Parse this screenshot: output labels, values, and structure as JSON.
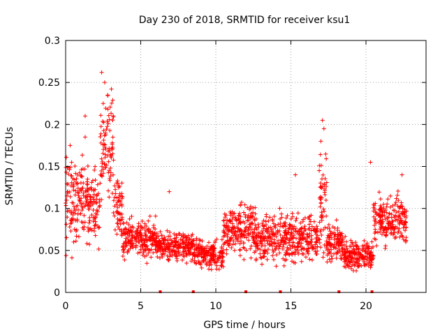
{
  "chart_data": {
    "type": "scatter",
    "title": "Day 230 of 2018, SRMTID for receiver ksu1",
    "xlabel": "GPS time / hours",
    "ylabel": "SRMTID / TECUs",
    "xlim": [
      0,
      24
    ],
    "ylim": [
      0,
      0.3
    ],
    "grid": true,
    "x_ticks": [
      0,
      5,
      10,
      15,
      20
    ],
    "x_tick_labels": [
      "0",
      "5",
      "10",
      "15",
      "20"
    ],
    "y_ticks": [
      0,
      0.05,
      0.1,
      0.15,
      0.2,
      0.25,
      0.3
    ],
    "y_tick_labels": [
      "0",
      "0.05",
      "0.1",
      "0.15",
      "0.2",
      "0.25",
      "0.3"
    ],
    "marker": "plus",
    "series_color": "#ff0000",
    "baseline_markers_x": [
      6.3,
      8.5,
      12.0,
      14.3,
      18.2,
      20.4
    ],
    "activity_profile": [
      {
        "start": 0.0,
        "end": 0.5,
        "center": 0.11,
        "spread": 0.05
      },
      {
        "start": 0.5,
        "end": 1.5,
        "center": 0.11,
        "spread": 0.04
      },
      {
        "start": 1.5,
        "end": 2.3,
        "center": 0.1,
        "spread": 0.04
      },
      {
        "start": 2.3,
        "end": 3.2,
        "center": 0.17,
        "spread": 0.06
      },
      {
        "start": 3.2,
        "end": 3.8,
        "center": 0.1,
        "spread": 0.03
      },
      {
        "start": 3.8,
        "end": 6.0,
        "center": 0.065,
        "spread": 0.02
      },
      {
        "start": 6.0,
        "end": 8.5,
        "center": 0.055,
        "spread": 0.015
      },
      {
        "start": 8.5,
        "end": 10.5,
        "center": 0.045,
        "spread": 0.015
      },
      {
        "start": 10.5,
        "end": 12.5,
        "center": 0.075,
        "spread": 0.025
      },
      {
        "start": 12.5,
        "end": 15.0,
        "center": 0.065,
        "spread": 0.025
      },
      {
        "start": 15.0,
        "end": 16.8,
        "center": 0.065,
        "spread": 0.025
      },
      {
        "start": 16.8,
        "end": 17.4,
        "center": 0.1,
        "spread": 0.05
      },
      {
        "start": 17.4,
        "end": 18.5,
        "center": 0.06,
        "spread": 0.02
      },
      {
        "start": 18.5,
        "end": 20.5,
        "center": 0.045,
        "spread": 0.015
      },
      {
        "start": 20.5,
        "end": 22.7,
        "center": 0.085,
        "spread": 0.025
      }
    ],
    "notable_points": [
      {
        "x": 2.4,
        "y": 0.262
      },
      {
        "x": 2.6,
        "y": 0.25
      },
      {
        "x": 2.8,
        "y": 0.235
      },
      {
        "x": 2.5,
        "y": 0.225
      },
      {
        "x": 17.1,
        "y": 0.205
      },
      {
        "x": 17.2,
        "y": 0.195
      },
      {
        "x": 17.0,
        "y": 0.18
      },
      {
        "x": 1.3,
        "y": 0.21
      },
      {
        "x": 1.3,
        "y": 0.185
      },
      {
        "x": 0.3,
        "y": 0.175
      },
      {
        "x": 20.3,
        "y": 0.155
      },
      {
        "x": 6.9,
        "y": 0.12
      },
      {
        "x": 15.3,
        "y": 0.14
      },
      {
        "x": 22.4,
        "y": 0.14
      }
    ]
  }
}
